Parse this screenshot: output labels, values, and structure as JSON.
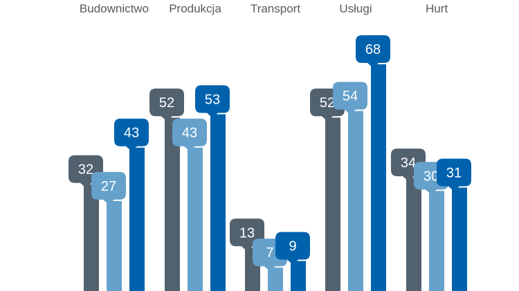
{
  "chart_data": {
    "type": "bar",
    "categories": [
      "Budownictwo",
      "Produkcja",
      "Transport",
      "Usługi",
      "Hurt"
    ],
    "series": [
      {
        "values": [
          32,
          52,
          13,
          52,
          34
        ]
      },
      {
        "values": [
          27,
          43,
          7,
          54,
          30
        ]
      },
      {
        "values": [
          43,
          53,
          9,
          68,
          31
        ]
      }
    ],
    "colors": [
      "#52616e",
      "#65a1cb",
      "#0062ad"
    ],
    "data_labels": true,
    "category_labels_position": "top",
    "ylim": [
      0,
      68
    ],
    "grid": false,
    "legend": "none"
  }
}
